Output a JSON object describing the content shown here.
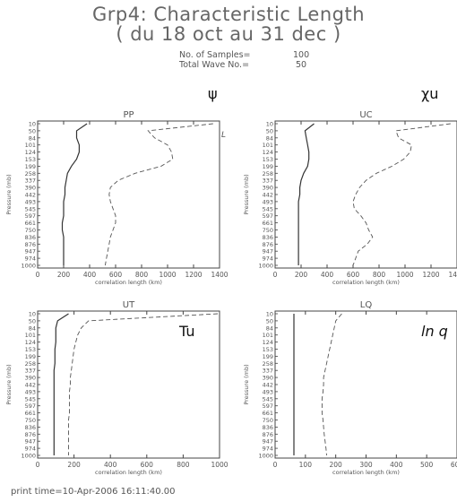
{
  "header": {
    "title_line1": "Grp4: Characteristic Length",
    "title_line2": "( du 18 oct au 31 dec )",
    "samples_label": "No. of Samples=",
    "samples_value": "100",
    "wave_label": "Total Wave No.=",
    "wave_value": "50"
  },
  "footer": {
    "print_time": "print time=10-Apr-2006 16:11:40.00"
  },
  "colors": {
    "solid": "#333333",
    "dashed": "#555555",
    "axis": "#444444"
  },
  "chart_data": [
    {
      "type": "line",
      "title": "PP",
      "symbol": "ψ",
      "xlabel": "correlation length (km)",
      "ylabel": "Pressure (mb)",
      "xlim": [
        0,
        1400
      ],
      "xticks": [
        0,
        200,
        400,
        600,
        800,
        1000,
        1200,
        1400
      ],
      "y_pressure_levels": [
        10,
        50,
        84,
        101,
        124,
        153,
        199,
        258,
        337,
        390,
        442,
        493,
        545,
        597,
        661,
        750,
        836,
        876,
        947,
        974,
        1000
      ],
      "series": [
        {
          "style": "solid",
          "x": [
            380,
            300,
            300,
            320,
            320,
            300,
            260,
            230,
            220,
            210,
            210,
            200,
            200,
            200,
            190,
            190,
            200,
            200,
            200,
            200,
            200
          ]
        },
        {
          "style": "dashed",
          "x": [
            1350,
            850,
            900,
            1000,
            1030,
            1040,
            950,
            750,
            620,
            560,
            550,
            560,
            580,
            600,
            600,
            580,
            560,
            550,
            540,
            530,
            520
          ]
        }
      ],
      "annotation": "L"
    },
    {
      "type": "line",
      "title": "UC",
      "symbol": "χu",
      "xlabel": "correlation length (km)",
      "ylabel": "Pressure (mb)",
      "xlim": [
        0,
        1400
      ],
      "xticks": [
        0,
        200,
        400,
        600,
        800,
        1000,
        1200,
        1400
      ],
      "y_pressure_levels": [
        10,
        50,
        84,
        101,
        124,
        153,
        199,
        258,
        337,
        390,
        442,
        493,
        545,
        597,
        661,
        750,
        836,
        876,
        947,
        974,
        1000
      ],
      "series": [
        {
          "style": "solid",
          "x": [
            300,
            230,
            240,
            250,
            260,
            260,
            250,
            220,
            200,
            190,
            190,
            180,
            180,
            180,
            180,
            180,
            180,
            180,
            180,
            180,
            180
          ]
        },
        {
          "style": "dashed",
          "x": [
            1350,
            930,
            950,
            1050,
            1040,
            990,
            900,
            780,
            700,
            650,
            620,
            600,
            610,
            660,
            700,
            720,
            750,
            710,
            640,
            620,
            600
          ]
        }
      ]
    },
    {
      "type": "line",
      "title": "UT",
      "symbol": "Tu",
      "xlabel": "correlation length (km)",
      "ylabel": "Pressure (mb)",
      "xlim": [
        0,
        1000
      ],
      "xticks": [
        0,
        200,
        400,
        600,
        800,
        1000
      ],
      "y_pressure_levels": [
        10,
        50,
        84,
        101,
        124,
        153,
        199,
        258,
        337,
        390,
        442,
        493,
        545,
        597,
        661,
        750,
        836,
        876,
        947,
        974,
        1000
      ],
      "series": [
        {
          "style": "solid",
          "x": [
            170,
            110,
            100,
            100,
            100,
            95,
            95,
            95,
            90,
            90,
            90,
            90,
            90,
            90,
            90,
            90,
            90,
            90,
            90,
            90,
            90
          ]
        },
        {
          "style": "dashed",
          "x": [
            990,
            280,
            240,
            220,
            210,
            200,
            195,
            190,
            185,
            180,
            180,
            175,
            175,
            175,
            175,
            170,
            170,
            170,
            170,
            170,
            170
          ]
        }
      ]
    },
    {
      "type": "line",
      "title": "LQ",
      "symbol": "ln q",
      "xlabel": "correlation length (km)",
      "ylabel": "Pressure (mb)",
      "xlim": [
        0,
        600
      ],
      "xticks": [
        0,
        100,
        200,
        300,
        400,
        500,
        600
      ],
      "y_pressure_levels": [
        10,
        50,
        84,
        101,
        124,
        153,
        199,
        258,
        337,
        390,
        442,
        493,
        545,
        597,
        661,
        750,
        836,
        876,
        947,
        974,
        1000
      ],
      "series": [
        {
          "style": "solid",
          "x": [
            62,
            62,
            62,
            62,
            62,
            62,
            62,
            62,
            62,
            62,
            62,
            62,
            62,
            62,
            62,
            62,
            62,
            62,
            62,
            62,
            62
          ]
        },
        {
          "style": "dashed",
          "x": [
            220,
            200,
            195,
            190,
            185,
            180,
            175,
            170,
            165,
            160,
            160,
            158,
            155,
            155,
            155,
            158,
            160,
            162,
            165,
            168,
            170
          ]
        }
      ]
    }
  ]
}
